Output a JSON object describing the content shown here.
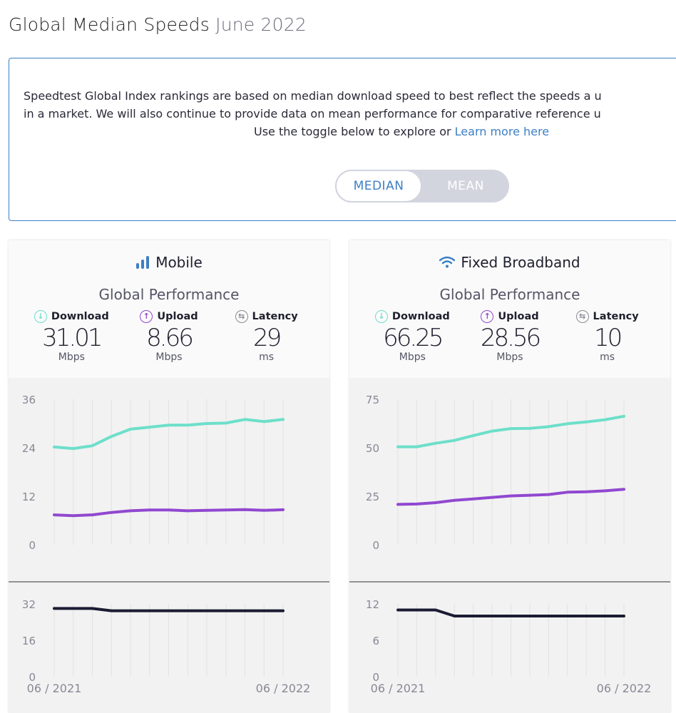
{
  "header": {
    "title": "Global Median Speeds",
    "subtitle": "June 2022"
  },
  "info": {
    "line1": "Speedtest Global Index rankings are based on median download speed to best reflect the speeds a u",
    "line2": "in a market. We will also continue to provide data on mean performance for comparative reference u",
    "line3": "Use the toggle below to explore or ",
    "link": "Learn more here"
  },
  "toggle": {
    "options": [
      "MEDIAN",
      "MEAN"
    ],
    "selected": "MEDIAN"
  },
  "colors": {
    "download": "#6ddfca",
    "upload": "#9148d0",
    "latency": "#1b1c33",
    "accent": "#3d7fc4"
  },
  "cards": [
    {
      "title": "Mobile",
      "icon": "signal-bars-icon",
      "section": "Global Performance",
      "stats": [
        {
          "label": "Download",
          "value": "31.01",
          "unit": "Mbps"
        },
        {
          "label": "Upload",
          "value": "8.66",
          "unit": "Mbps"
        },
        {
          "label": "Latency",
          "value": "29",
          "unit": "ms"
        }
      ]
    },
    {
      "title": "Fixed Broadband",
      "icon": "wifi-icon",
      "section": "Global Performance",
      "stats": [
        {
          "label": "Download",
          "value": "66.25",
          "unit": "Mbps"
        },
        {
          "label": "Upload",
          "value": "28.56",
          "unit": "Mbps"
        },
        {
          "label": "Latency",
          "value": "10",
          "unit": "ms"
        }
      ]
    }
  ],
  "chart_data": [
    {
      "type": "line",
      "x_labels": [
        "06 / 2021",
        "06 / 2022"
      ],
      "ylim": [
        0,
        36
      ],
      "yticks": [
        0,
        12,
        24,
        36
      ],
      "grid": "vertical",
      "series": [
        {
          "values": [
            24.2,
            23.8,
            24.5,
            26.8,
            28.6,
            29.1,
            29.6,
            29.6,
            30.0,
            30.1,
            31.0,
            30.5,
            31.01
          ],
          "color": "#6ddfca"
        },
        {
          "values": [
            7.4,
            7.2,
            7.4,
            8.0,
            8.4,
            8.6,
            8.6,
            8.4,
            8.5,
            8.6,
            8.7,
            8.5,
            8.66
          ],
          "color": "#9148d0"
        }
      ]
    },
    {
      "type": "line",
      "ylim": [
        0,
        32
      ],
      "yticks": [
        0,
        16,
        32
      ],
      "grid": "vertical",
      "series": [
        {
          "values": [
            30,
            30,
            30,
            29,
            29,
            29,
            29,
            29,
            29,
            29,
            29,
            29,
            29
          ],
          "color": "#1b1c33"
        }
      ]
    },
    {
      "type": "line",
      "x_labels": [
        "06 / 2021",
        "06 / 2022"
      ],
      "ylim": [
        0,
        75
      ],
      "yticks": [
        0,
        25,
        50,
        75
      ],
      "grid": "vertical",
      "series": [
        {
          "values": [
            50.5,
            50.5,
            52.3,
            53.8,
            56.3,
            58.6,
            59.9,
            60.0,
            60.9,
            62.4,
            63.3,
            64.5,
            66.25
          ],
          "color": "#6ddfca"
        },
        {
          "values": [
            20.8,
            21.0,
            21.7,
            22.9,
            23.6,
            24.4,
            25.2,
            25.5,
            25.9,
            27.1,
            27.3,
            27.8,
            28.56
          ],
          "color": "#9148d0"
        }
      ]
    },
    {
      "type": "line",
      "ylim": [
        0,
        12
      ],
      "yticks": [
        0,
        6,
        12
      ],
      "grid": "vertical",
      "series": [
        {
          "values": [
            11,
            11,
            11,
            10,
            10,
            10,
            10,
            10,
            10,
            10,
            10,
            10,
            10
          ],
          "color": "#1b1c33"
        }
      ]
    }
  ]
}
